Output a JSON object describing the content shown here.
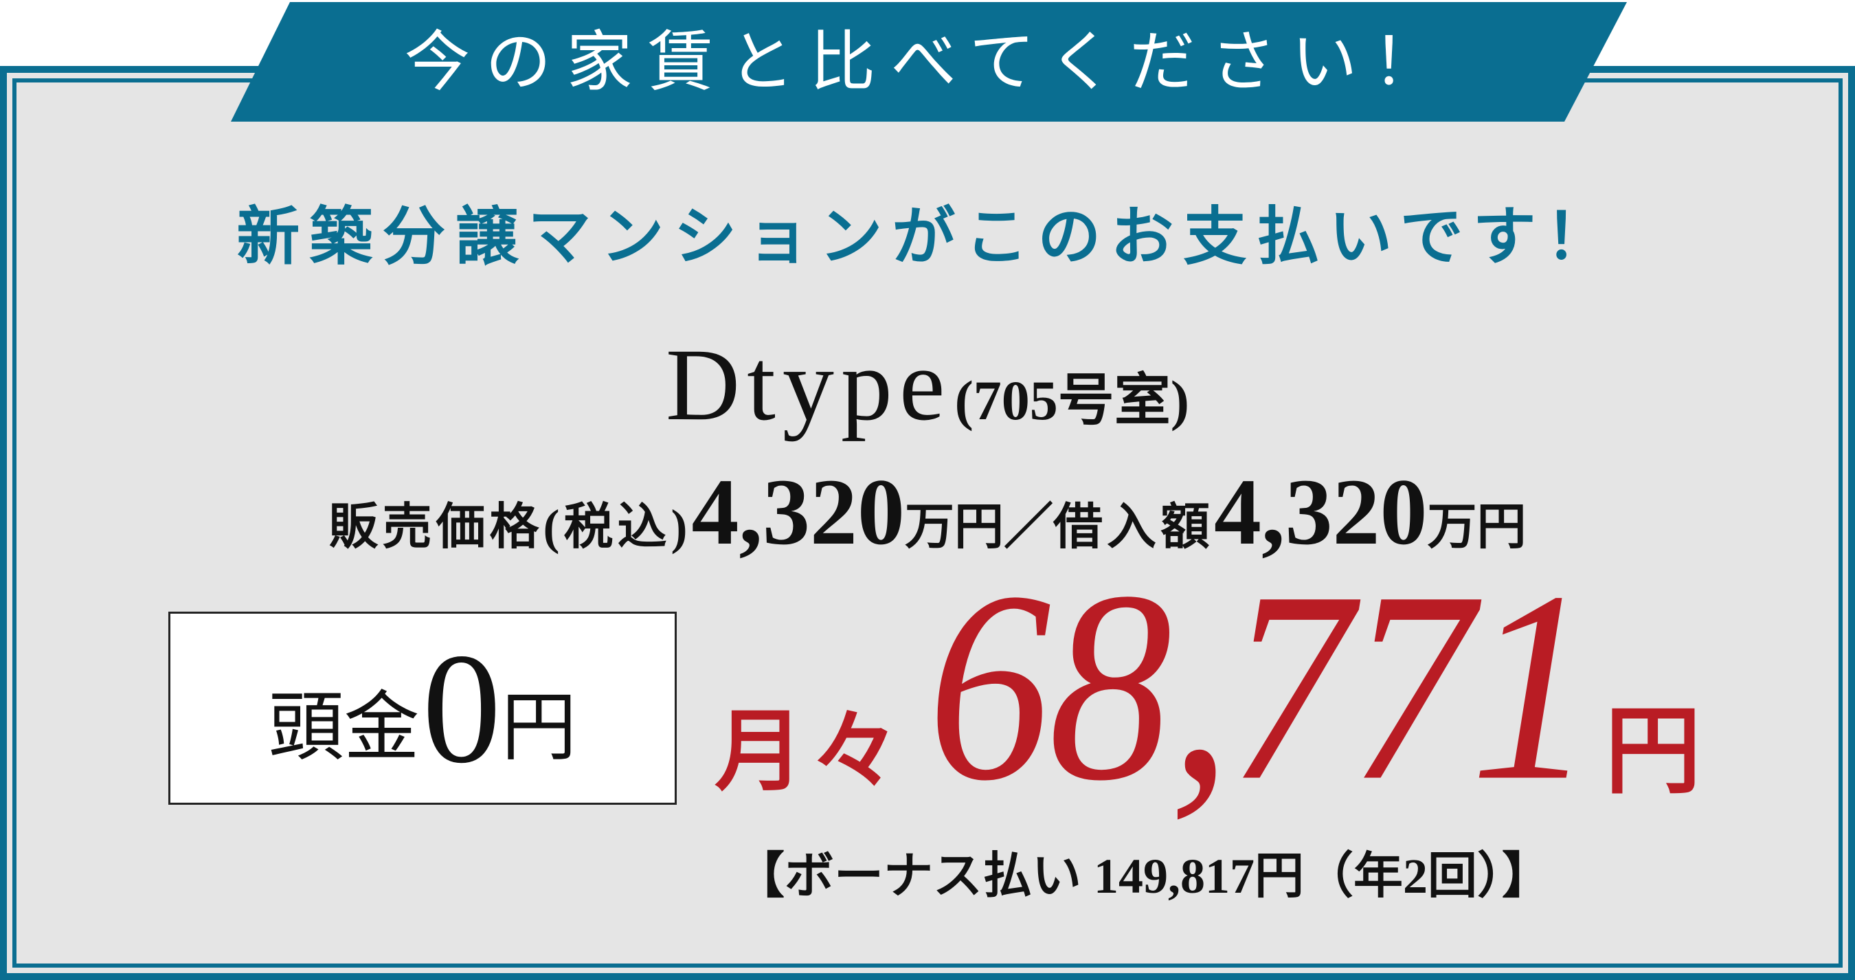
{
  "banner": {
    "text": "今の家賃と比べてください！"
  },
  "subtitle": "新築分譲マンションがこのお支払いです！",
  "unit": {
    "type": "Dtype",
    "room": "(705号室)"
  },
  "price": {
    "sale_label": "販売価格(税込)",
    "sale_value": "4,320",
    "sale_unit": "万円",
    "separator": "／",
    "loan_label": "借入額",
    "loan_value": "4,320",
    "loan_unit": "万円"
  },
  "down_payment": {
    "label": "頭金",
    "value": "0",
    "unit": "円"
  },
  "monthly": {
    "label": "月々",
    "value": "68,771",
    "unit": "円"
  },
  "bonus": {
    "text": "【ボーナス払い 149,817円（年2回）】"
  },
  "colors": {
    "accent": "#0a6e91",
    "price": "#b91c24",
    "background": "#e5e5e5"
  }
}
